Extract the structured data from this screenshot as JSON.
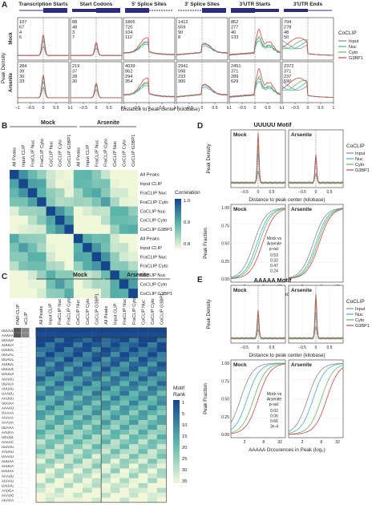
{
  "panels": {
    "A": {
      "letter": "A",
      "columns": [
        "Transcription Starts",
        "Start Codons",
        "5' Splice Sites",
        "3' Splice Sites",
        "3'UTR Starts",
        "3'UTR Ends"
      ],
      "rows": [
        "Mock",
        "Arsenite"
      ],
      "ylabel": "Peak Density",
      "xlabel": "Distance to peak center (kilobase)",
      "xticks": [
        "−1",
        "−0.5",
        "0",
        "0.5",
        "1"
      ],
      "legend_title": "CoCLIP",
      "legend": [
        "Input",
        "Nuc",
        "Cyto",
        "G3BP1"
      ],
      "counts": {
        "Mock": [
          [
            "107",
            "67",
            "4",
            "6"
          ],
          [
            "88",
            "48",
            "3",
            "7"
          ],
          [
            "1805",
            "720",
            "104",
            "112"
          ],
          [
            "1412",
            "559",
            "90",
            "8"
          ],
          [
            "862",
            "277",
            "40",
            "133"
          ],
          [
            "794",
            "278",
            "48",
            "50"
          ]
        ],
        "Arsenite": [
          [
            "284",
            "39",
            "30",
            "33"
          ],
          [
            "219",
            "37",
            "28",
            "30"
          ],
          [
            "4039",
            "862",
            "294",
            "354"
          ],
          [
            "2941",
            "598",
            "233",
            "300"
          ],
          [
            "2451",
            "371",
            "289",
            "629"
          ],
          [
            "2372",
            "371",
            "237",
            "590"
          ]
        ]
      }
    },
    "B": {
      "letter": "B",
      "groups": [
        "Mock",
        "Arsenite"
      ],
      "labels": [
        "All Peaks",
        "Input CLIP",
        "FraCLIP Nuc",
        "FraCLIP Cyto",
        "CoCLIP Nuc",
        "CoCLIP Cyto",
        "CoCLIP G3BP1",
        "All Peaks",
        "Input CLIP",
        "FraCLIP Nuc",
        "FraCLIP Cyto",
        "CoCLIP Nuc",
        "CoCLIP Cyto",
        "CoCLIP G3BP1"
      ],
      "legend_title": "Correlation",
      "legend_ticks": [
        "1.0",
        "0.9",
        "0.8"
      ]
    },
    "C": {
      "letter": "C",
      "groups": [
        "Mock",
        "Arsenite"
      ],
      "extra_cols": [
        "PAR-CLIP",
        "eCLIP"
      ],
      "cols": [
        "All Peaks",
        "Input CLIP",
        "FraCLIP Nuc",
        "FraCLIP Cyto",
        "CoCLIP Nuc",
        "CoCLIP Cyto",
        "CoCLIP G3BP1"
      ],
      "motifs": [
        "UUUUU",
        "AAAAA",
        "UUUUA",
        "AUUUA",
        "UAUUU",
        "UUUAU",
        "UUAUU",
        "AUUUU",
        "UUUUC",
        "UAUUA",
        "AUAUU",
        "UUAUA",
        "AUUAU",
        "UAAUU",
        "AAUUU",
        "UUUAA",
        "AAAAU",
        "UAAAA",
        "AUAAA",
        "AAAUA",
        "UUAAA",
        "AAUAA",
        "UGUUU",
        "AAAAC",
        "UUAAU",
        "AAUAU",
        "UAAAU",
        "AUUAA",
        "AAUUA",
        "UAUAA",
        "AAAUU",
        "AUAAU",
        "UAUAU",
        "AAUGA",
        "AAAUG",
        "AUAUA"
      ],
      "legend_title": "Motif Rank",
      "legend_ticks": [
        "1",
        "5",
        "10",
        "15",
        "20",
        "25",
        "30",
        "35"
      ]
    },
    "D": {
      "letter": "D",
      "title": "UUUUU Motif",
      "facets": [
        "Mock",
        "Arsenite"
      ],
      "top_ylabel": "Peak Density",
      "top_xlabel": "Distance to peak center (kilobase)",
      "top_xticks": [
        "−0.5",
        "0",
        "0.5"
      ],
      "bottom_ylabel": "Peak Fraction",
      "bottom_xlabel": "UUUUU Occurences in Peak (log₂)",
      "bottom_xticks": [
        "2",
        "8",
        "32"
      ],
      "yticks": [
        "0.00",
        "0.25",
        "0.50",
        "0.75",
        "1.00"
      ],
      "legend_title": "CoCLIP",
      "legend": [
        "Input",
        "Nuc",
        "Cyto",
        "G3BP1"
      ],
      "pval_header": [
        "Mock vs",
        "Arsenite",
        "p-val:"
      ],
      "pvals": [
        "0.53",
        "0.32",
        "0.47",
        "0.24"
      ]
    },
    "E": {
      "letter": "E",
      "title": "AAAAA Motif",
      "facets": [
        "Mock",
        "Arsenite"
      ],
      "top_ylabel": "Peak Density",
      "top_xlabel": "Distance to peak center (kilobase)",
      "top_xticks": [
        "−0.5",
        "0",
        "0.5"
      ],
      "bottom_ylabel": "Peak Fraction",
      "bottom_xlabel": "AAAAA Occurences in Peak (log₂)",
      "bottom_xticks": [
        "2",
        "8",
        "32"
      ],
      "yticks": [
        "0.00",
        "0.25",
        "0.50",
        "0.75",
        "1.00"
      ],
      "legend_title": "CoCLIP",
      "legend": [
        "Input",
        "Nuc",
        "Cyto",
        "G3BP1"
      ],
      "pval_header": [
        "Mock vs",
        "Arsenite",
        "p-val:"
      ],
      "pvals": [
        "0.02",
        "0.06",
        "0.66",
        "3e-4"
      ]
    }
  },
  "colors": {
    "input": "#8a8a8a",
    "nuc": "#39b3c4",
    "cyto": "#5fbf5a",
    "g3bp1": "#d8424a",
    "header": "#2d2d80"
  },
  "chart_data": []
}
